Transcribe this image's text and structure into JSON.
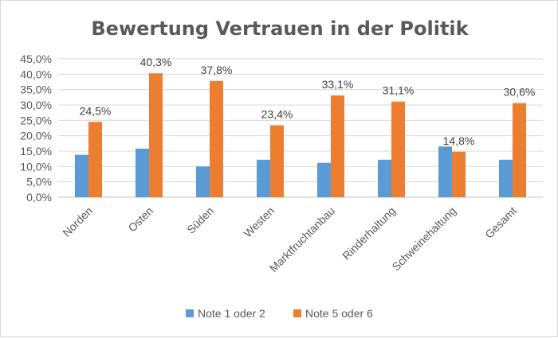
{
  "chart_data": {
    "type": "bar",
    "title": "Bewertung Vertrauen in der Politik",
    "categories": [
      "Norden",
      "Osten",
      "Süden",
      "Westen",
      "Marktfruchtanbau",
      "Rinderhaltung",
      "Schweinehaltung",
      "Gesamt"
    ],
    "series": [
      {
        "name": "Note 1 oder 2",
        "color": "#5b9bd5",
        "values": [
          13.8,
          15.8,
          10.0,
          12.2,
          11.2,
          12.2,
          16.5,
          12.2
        ]
      },
      {
        "name": "Note 5 oder 6",
        "color": "#ed7d31",
        "values": [
          24.5,
          40.3,
          37.8,
          23.4,
          33.1,
          31.1,
          14.8,
          30.6
        ],
        "labels": [
          "24,5%",
          "40,3%",
          "37,8%",
          "23,4%",
          "33,1%",
          "31,1%",
          "14,8%",
          "30,6%"
        ]
      }
    ],
    "yticks": [
      "0,0%",
      "5,0%",
      "10,0%",
      "15,0%",
      "20,0%",
      "25,0%",
      "30,0%",
      "35,0%",
      "40,0%",
      "45,0%"
    ],
    "ylim": [
      0,
      45
    ],
    "grid": true,
    "legend_position": "bottom"
  }
}
